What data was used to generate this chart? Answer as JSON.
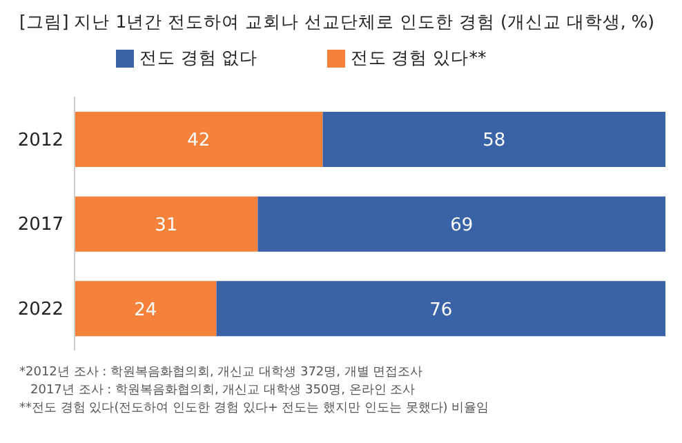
{
  "chart_data": {
    "type": "bar",
    "orientation": "horizontal",
    "stacked": true,
    "title": "[그림] 지난 1년간 전도하여 교회나 선교단체로 인도한 경험 (개신교 대학생, %)",
    "categories": [
      "2012",
      "2017",
      "2022"
    ],
    "series": [
      {
        "name": "전도 경험 있다**",
        "color": "#f5813a",
        "values": [
          42,
          31,
          24
        ]
      },
      {
        "name": "전도 경험 없다",
        "color": "#3a62a7",
        "values": [
          58,
          69,
          76
        ]
      }
    ],
    "data_labels": true,
    "legend": "top",
    "grid": false,
    "annotations": [
      "*2012년 조사 : 학원복음화협의회, 개신교 대학생 372명, 개별 면접조사",
      "2017년 조사 : 학원복음화협의회, 개신교 대학생 350명, 온라인 조사",
      "**전도 경험 있다(전도하여 인도한 경험 있다+ 전도는 했지만 인도는 못했다) 비율임"
    ]
  }
}
